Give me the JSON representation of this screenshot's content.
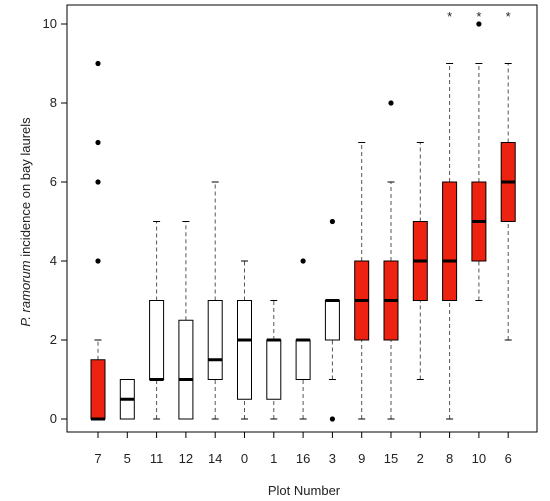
{
  "chart_data": {
    "type": "box",
    "xlabel": "Plot Number",
    "ylabel_italic": "P. ramorum",
    "ylabel_rest": " incidence on bay laurels",
    "ylim": [
      0,
      10
    ],
    "yticks": [
      0,
      2,
      4,
      6,
      8,
      10
    ],
    "grid": false,
    "colors": {
      "highlight": "#ee2211",
      "plain": "#ffffff",
      "stroke": "#000000"
    },
    "categories": [
      "7",
      "5",
      "11",
      "12",
      "14",
      "0",
      "1",
      "16",
      "3",
      "9",
      "15",
      "2",
      "8",
      "10",
      "6"
    ],
    "boxes": [
      {
        "plot": "7",
        "whisker_low": 0,
        "q1": 0,
        "median": 0,
        "q3": 1.5,
        "whisker_high": 2,
        "outliers": [
          4,
          6,
          7,
          9
        ],
        "highlight": true,
        "star": false
      },
      {
        "plot": "5",
        "whisker_low": 0,
        "q1": 0,
        "median": 0.5,
        "q3": 1,
        "whisker_high": 1,
        "outliers": [],
        "highlight": false,
        "star": false
      },
      {
        "plot": "11",
        "whisker_low": 0,
        "q1": 1,
        "median": 1,
        "q3": 3,
        "whisker_high": 5,
        "outliers": [],
        "highlight": false,
        "star": false
      },
      {
        "plot": "12",
        "whisker_low": 0,
        "q1": 0,
        "median": 1,
        "q3": 2.5,
        "whisker_high": 5,
        "outliers": [],
        "highlight": false,
        "star": false
      },
      {
        "plot": "14",
        "whisker_low": 0,
        "q1": 1,
        "median": 1.5,
        "q3": 3,
        "whisker_high": 6,
        "outliers": [],
        "highlight": false,
        "star": false
      },
      {
        "plot": "0",
        "whisker_low": 0,
        "q1": 0.5,
        "median": 2,
        "q3": 3,
        "whisker_high": 4,
        "outliers": [],
        "highlight": false,
        "star": false
      },
      {
        "plot": "1",
        "whisker_low": 0,
        "q1": 0.5,
        "median": 2,
        "q3": 2,
        "whisker_high": 3,
        "outliers": [],
        "highlight": false,
        "star": false
      },
      {
        "plot": "16",
        "whisker_low": 0,
        "q1": 1,
        "median": 2,
        "q3": 2,
        "whisker_high": 2,
        "outliers": [
          4
        ],
        "highlight": false,
        "star": false
      },
      {
        "plot": "3",
        "whisker_low": 1,
        "q1": 2,
        "median": 3,
        "q3": 3,
        "whisker_high": 3,
        "outliers": [
          0,
          5
        ],
        "highlight": false,
        "star": false
      },
      {
        "plot": "9",
        "whisker_low": 0,
        "q1": 2,
        "median": 3,
        "q3": 4,
        "whisker_high": 7,
        "outliers": [],
        "highlight": true,
        "star": false
      },
      {
        "plot": "15",
        "whisker_low": 0,
        "q1": 2,
        "median": 3,
        "q3": 4,
        "whisker_high": 6,
        "outliers": [
          8
        ],
        "highlight": true,
        "star": false
      },
      {
        "plot": "2",
        "whisker_low": 1,
        "q1": 3,
        "median": 4,
        "q3": 5,
        "whisker_high": 7,
        "outliers": [],
        "highlight": true,
        "star": false
      },
      {
        "plot": "8",
        "whisker_low": 0,
        "q1": 3,
        "median": 4,
        "q3": 6,
        "whisker_high": 9,
        "outliers": [],
        "highlight": true,
        "star": true
      },
      {
        "plot": "10",
        "whisker_low": 3,
        "q1": 4,
        "median": 5,
        "q3": 6,
        "whisker_high": 9,
        "outliers": [
          10
        ],
        "highlight": true,
        "star": true
      },
      {
        "plot": "6",
        "whisker_low": 2,
        "q1": 5,
        "median": 6,
        "q3": 7,
        "whisker_high": 9,
        "outliers": [],
        "highlight": true,
        "star": true
      }
    ],
    "star_symbol": "*"
  }
}
